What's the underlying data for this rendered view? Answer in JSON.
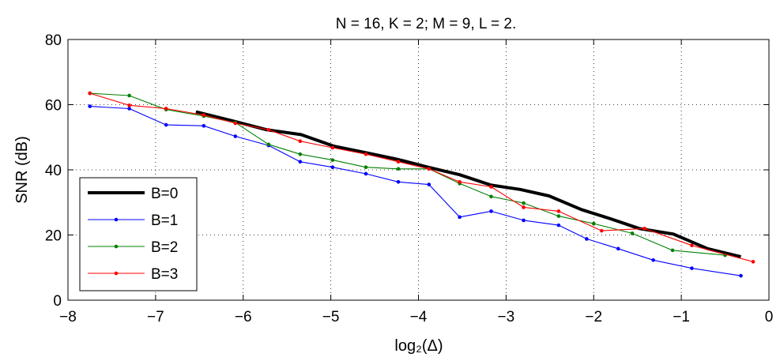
{
  "chart_data": {
    "type": "line",
    "title": "N = 16, K = 2; M = 9, L = 2.",
    "xlabel": "log₂(Δ)",
    "ylabel": "SNR (dB)",
    "xlim": [
      -8,
      0
    ],
    "ylim": [
      0,
      80
    ],
    "xticks": [
      -8,
      -7,
      -6,
      -5,
      -4,
      -3,
      -2,
      -1,
      0
    ],
    "yticks": [
      0,
      20,
      40,
      60,
      80
    ],
    "xtick_labels": [
      "−8",
      "−7",
      "−6",
      "−5",
      "−4",
      "−3",
      "−2",
      "−1",
      "0"
    ],
    "ytick_labels": [
      "0",
      "20",
      "40",
      "60",
      "80"
    ],
    "grid": true,
    "legend_position": "bottom-left",
    "series": [
      {
        "name": "B=0",
        "color": "#000000",
        "marker": false,
        "x": [
          -6.54,
          -6.12,
          -5.73,
          -5.34,
          -4.97,
          -4.61,
          -4.25,
          -3.89,
          -3.53,
          -3.17,
          -2.84,
          -2.51,
          -2.14,
          -1.81,
          -1.48,
          -1.09,
          -0.7,
          -0.32
        ],
        "y": [
          57.8,
          55.0,
          52.3,
          50.8,
          47.3,
          45.3,
          43.3,
          40.8,
          38.5,
          35.3,
          34.0,
          32.0,
          27.8,
          25.0,
          22.0,
          20.3,
          15.8,
          13.3
        ]
      },
      {
        "name": "B=1",
        "color": "#0000ff",
        "marker": true,
        "x": [
          -7.75,
          -7.3,
          -6.88,
          -6.45,
          -6.09,
          -5.71,
          -5.35,
          -4.98,
          -4.6,
          -4.23,
          -3.88,
          -3.53,
          -3.17,
          -2.8,
          -2.4,
          -2.08,
          -1.72,
          -1.32,
          -0.88,
          -0.32
        ],
        "y": [
          59.5,
          58.8,
          53.8,
          53.5,
          50.3,
          47.5,
          42.5,
          40.8,
          38.8,
          36.3,
          35.5,
          25.5,
          27.3,
          24.5,
          23.0,
          18.8,
          15.8,
          12.3,
          9.8,
          7.5
        ]
      },
      {
        "name": "B=2",
        "color": "#008000",
        "marker": true,
        "x": [
          -7.75,
          -7.3,
          -6.88,
          -6.45,
          -6.09,
          -5.71,
          -5.35,
          -4.98,
          -4.6,
          -4.23,
          -3.88,
          -3.53,
          -3.17,
          -2.8,
          -2.4,
          -2.0,
          -1.56,
          -1.1,
          -0.5
        ],
        "y": [
          63.5,
          62.8,
          58.5,
          56.5,
          54.5,
          47.8,
          44.8,
          43.0,
          40.8,
          40.3,
          40.3,
          35.8,
          31.8,
          29.8,
          25.8,
          23.5,
          20.5,
          15.3,
          13.8
        ]
      },
      {
        "name": "B=3",
        "color": "#ff0000",
        "marker": true,
        "x": [
          -7.75,
          -7.3,
          -6.88,
          -6.45,
          -6.09,
          -5.71,
          -5.35,
          -4.98,
          -4.6,
          -4.23,
          -3.88,
          -3.53,
          -3.17,
          -2.8,
          -2.4,
          -1.91,
          -1.42,
          -0.88,
          -0.18
        ],
        "y": [
          63.5,
          59.8,
          58.8,
          56.8,
          54.3,
          52.3,
          48.8,
          46.8,
          44.8,
          42.5,
          40.3,
          36.3,
          34.8,
          28.5,
          27.3,
          21.3,
          22.0,
          16.8,
          11.8
        ]
      }
    ]
  }
}
